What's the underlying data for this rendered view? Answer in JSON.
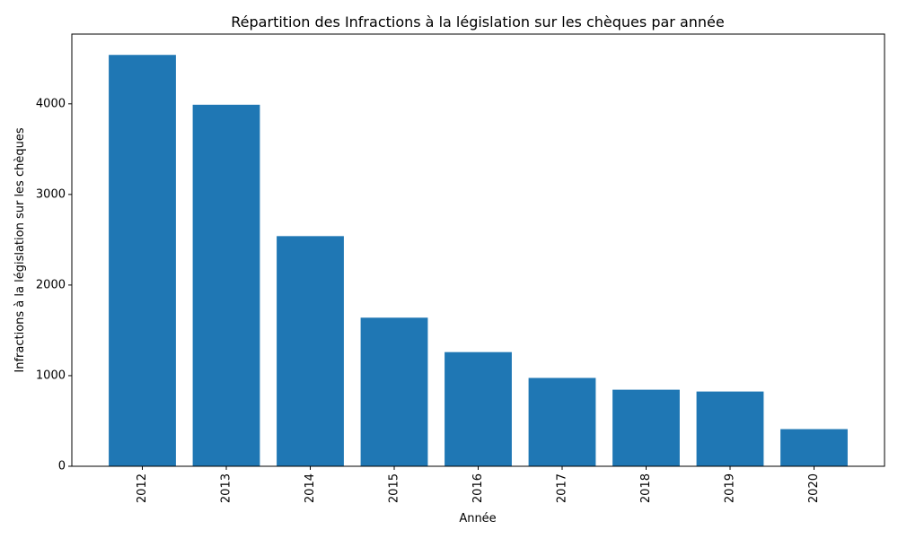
{
  "chart_data": {
    "type": "bar",
    "title": "Répartition des Infractions à la législation sur les chèques par année",
    "xlabel": "Année",
    "ylabel": "Infractions à la législation sur les chèques",
    "categories": [
      "2012",
      "2013",
      "2014",
      "2015",
      "2016",
      "2017",
      "2018",
      "2019",
      "2020"
    ],
    "values": [
      4540,
      3990,
      2540,
      1640,
      1260,
      975,
      845,
      825,
      410
    ],
    "ylim": [
      0,
      4770
    ],
    "yticks": [
      0,
      1000,
      2000,
      3000,
      4000
    ],
    "ytick_labels": [
      "0",
      "1000",
      "2000",
      "3000",
      "4000"
    ],
    "xtick_rotation": 90,
    "bar_color": "#1f77b4",
    "grid": false,
    "legend": "none"
  }
}
